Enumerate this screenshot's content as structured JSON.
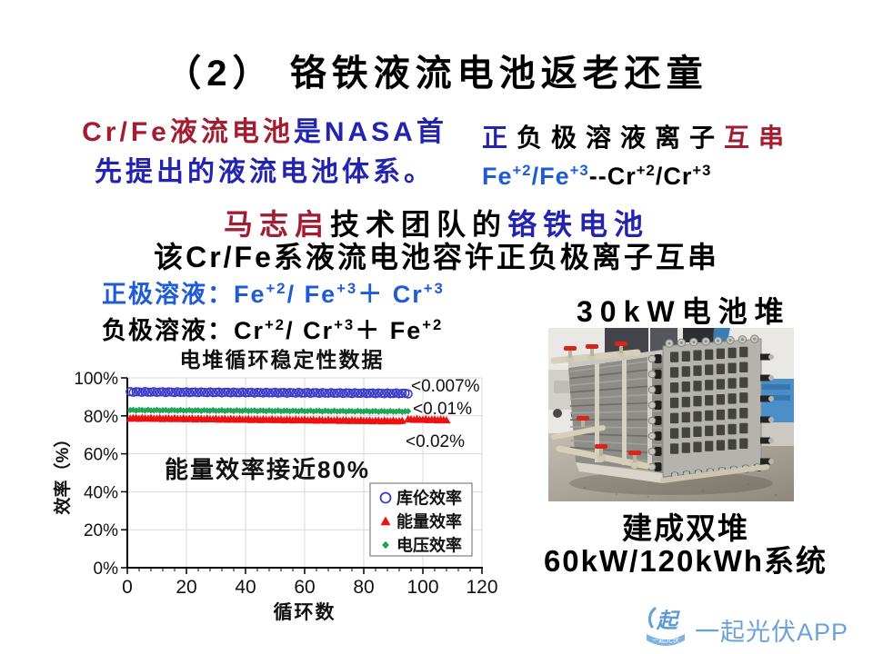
{
  "slide": {
    "title": "（2）  铬铁液流电池返老还童",
    "intro": {
      "line1_red": "Cr/Fe液流电池",
      "line1_blue": "是NASA首",
      "line2_blue": "先提出的液流电池体系。"
    },
    "crossover": {
      "blue": "正",
      "black": "负极溶液离子",
      "red": "互串",
      "formula_blue": [
        {
          "t": "Fe"
        },
        {
          "t": "+2",
          "sup": true
        },
        {
          "t": "/Fe"
        },
        {
          "t": "+3",
          "sup": true
        }
      ],
      "formula_black": [
        {
          "t": "--Cr"
        },
        {
          "t": "+2",
          "sup": true
        },
        {
          "t": "/Cr"
        },
        {
          "t": "+3",
          "sup": true
        }
      ]
    },
    "team": {
      "red": "马志启",
      "black": "技术团队的",
      "blue": "铬铁电池"
    },
    "statement": "该Cr/Fe系液流电池容许正负极离子互串",
    "positive_line": [
      {
        "t": "正极溶液："
      },
      {
        "t": "Fe"
      },
      {
        "t": "+2",
        "sup": true
      },
      {
        "t": "/ Fe"
      },
      {
        "t": "+3",
        "sup": true
      },
      {
        "t": "＋ Cr"
      },
      {
        "t": "+3",
        "sup": true
      }
    ],
    "negative_line": [
      {
        "t": "负极溶液："
      },
      {
        "t": "Cr"
      },
      {
        "t": "+2",
        "sup": true
      },
      {
        "t": "/ Cr"
      },
      {
        "t": "+3",
        "sup": true
      },
      {
        "t": "＋ Fe"
      },
      {
        "t": "+2",
        "sup": true
      }
    ],
    "stack_caption": "30kW电池堆",
    "result_line1": "建成双堆",
    "result_line2": "60kW/120kWh系统",
    "logo": {
      "icon_char": "起",
      "icon_sub": "一起光伏",
      "text": "一起光伏APP"
    }
  },
  "colors": {
    "dark_red": "#a21d32",
    "dark_blue": "#2323b0",
    "bright_blue": "#1f5bd6",
    "logo_blue": "#6aa3da"
  },
  "chart_data": {
    "type": "scatter",
    "title": "电堆循环稳定性数据",
    "xlabel": "循环数",
    "ylabel": "效率（%）",
    "xlim": [
      0,
      120
    ],
    "ylim_percent": [
      0,
      100
    ],
    "x_ticks": [
      0,
      20,
      40,
      60,
      80,
      100,
      120
    ],
    "y_ticks_percent": [
      0,
      20,
      40,
      60,
      80,
      100
    ],
    "grid": true,
    "legend_position": "inside-bottom-right",
    "series": [
      {
        "name": "库伦效率",
        "marker": "open-circle",
        "color": "#3b3bc8",
        "segments": [
          {
            "x_start": 1,
            "x_end": 95,
            "y_start": 92.6,
            "y_end": 91.8,
            "step": 1
          }
        ]
      },
      {
        "name": "能量效率",
        "marker": "triangle",
        "color": "#ee1111",
        "segments": [
          {
            "x_start": 1,
            "x_end": 93,
            "y_start": 78.8,
            "y_end": 77.3,
            "step": 1
          },
          {
            "x_start": 95,
            "x_end": 108,
            "y_start": 78.2,
            "y_end": 77.9,
            "step": 1
          }
        ]
      },
      {
        "name": "电压效率",
        "marker": "diamond",
        "color": "#21a457",
        "segments": [
          {
            "x_start": 1,
            "x_end": 95,
            "y_start": 83.0,
            "y_end": 82.3,
            "step": 1
          }
        ]
      }
    ],
    "annotations": [
      "<0.007%",
      "<0.01%",
      "<0.02%",
      "能量效率接近80%"
    ]
  }
}
